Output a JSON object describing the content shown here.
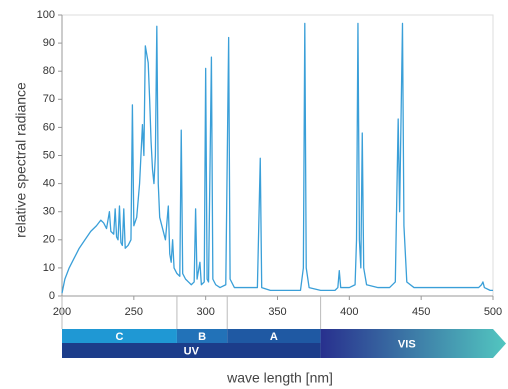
{
  "chart_data": {
    "type": "line",
    "y_label": "relative spectral radiance",
    "x_label": "wave length [nm]",
    "color": "#3a9fd8",
    "xlim": [
      200,
      500
    ],
    "ylim": [
      0,
      100
    ],
    "xticks": [
      200,
      250,
      300,
      350,
      400,
      450,
      500
    ],
    "yticks": [
      0,
      10,
      20,
      30,
      40,
      50,
      60,
      70,
      80,
      90,
      100
    ],
    "x": [
      200,
      202,
      205,
      208,
      212,
      216,
      220,
      224,
      227,
      229,
      231,
      233,
      234,
      236,
      237,
      238,
      239,
      240,
      241,
      242,
      243,
      244,
      246,
      248,
      249,
      250,
      252,
      254,
      256,
      257,
      258,
      259,
      260,
      261,
      262,
      263,
      264,
      265,
      266,
      267,
      268,
      270,
      272,
      274,
      275,
      276,
      277,
      278,
      280,
      282,
      283,
      284,
      286,
      288,
      290,
      292,
      293,
      294,
      296,
      297,
      299,
      300,
      301,
      302,
      304,
      305,
      307,
      310,
      314,
      316,
      317,
      320,
      325,
      330,
      336,
      338,
      339,
      345,
      350,
      360,
      366,
      368,
      369,
      370,
      372,
      380,
      390,
      392,
      393,
      394,
      400,
      404,
      405,
      406,
      407,
      408,
      409,
      410,
      412,
      420,
      428,
      432,
      434,
      435,
      437,
      438,
      440,
      445,
      460,
      480,
      490,
      492,
      493,
      494,
      498,
      500
    ],
    "values": [
      1,
      6,
      10,
      13,
      17,
      20,
      23,
      25,
      27,
      26,
      24,
      30,
      23,
      22,
      31,
      21,
      20,
      32,
      19,
      18,
      31,
      17,
      18,
      20,
      68,
      25,
      28,
      40,
      61,
      50,
      89,
      86,
      83,
      70,
      55,
      45,
      40,
      50,
      96,
      40,
      28,
      24,
      20,
      32,
      15,
      12,
      20,
      10,
      8,
      7,
      59,
      8,
      6,
      5,
      4,
      5,
      31,
      6,
      12,
      4,
      5,
      81,
      6,
      5,
      85,
      6,
      4,
      3,
      4,
      92,
      6,
      3,
      3,
      3,
      3,
      49,
      3,
      2,
      2,
      2,
      2,
      10,
      97,
      10,
      3,
      2,
      2,
      3,
      9,
      3,
      3,
      4,
      20,
      97,
      20,
      10,
      58,
      10,
      4,
      3,
      3,
      5,
      63,
      30,
      97,
      25,
      5,
      3,
      3,
      3,
      3,
      4,
      5,
      3,
      2,
      2
    ],
    "bands": [
      {
        "label": "C",
        "start": 200,
        "end": 280,
        "color": "#1f98d4"
      },
      {
        "label": "B",
        "start": 280,
        "end": 315,
        "color": "#2272b8"
      },
      {
        "label": "A",
        "start": 315,
        "end": 380,
        "color": "#1f59a3"
      }
    ],
    "ranges": [
      {
        "label": "UV",
        "start": 200,
        "end": 380,
        "colors": [
          "#1c3d8a",
          "#1c3d8a"
        ]
      },
      {
        "label": "VIS",
        "start": 380,
        "end": 500,
        "colors": [
          "#28308e",
          "#52c6c0"
        ]
      }
    ]
  }
}
